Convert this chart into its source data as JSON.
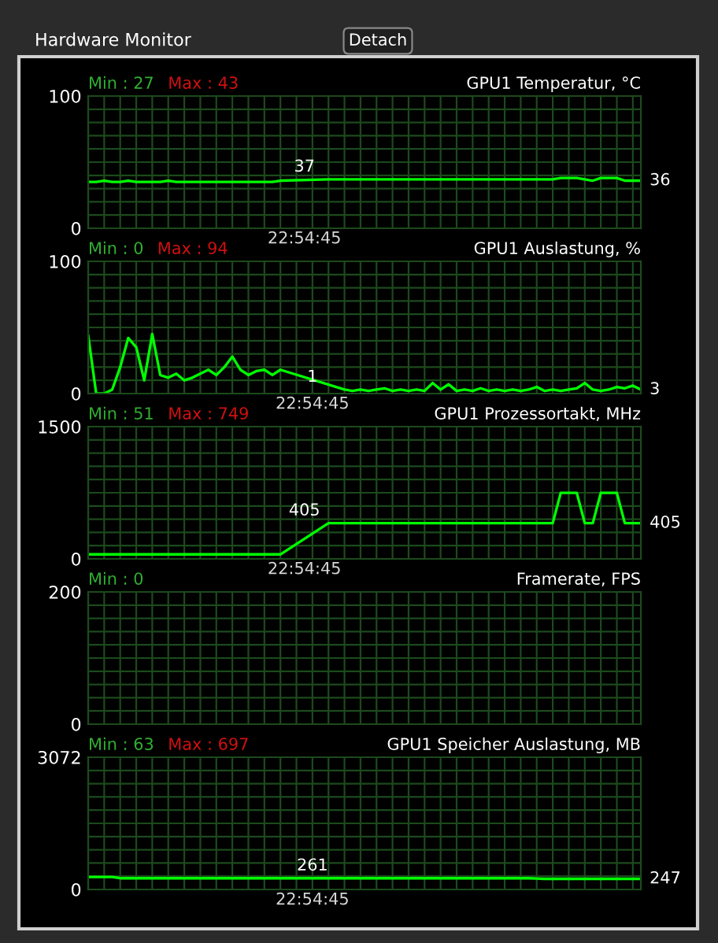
{
  "chart_data": [
    {
      "type": "line",
      "title": "GPU1 Temperatur, °C",
      "xlabel": "22:54:45",
      "categories": [
        null,
        null,
        null,
        null,
        null,
        null,
        null,
        null,
        null,
        null,
        null,
        null,
        null,
        null,
        null,
        null,
        null,
        null,
        null,
        null,
        null,
        null,
        null,
        null,
        null,
        null,
        null,
        null,
        null,
        null,
        null,
        null,
        null,
        null,
        null,
        null,
        null,
        null,
        null,
        null,
        null,
        null,
        null,
        null,
        null,
        null,
        null,
        null,
        null,
        null,
        null,
        null,
        null,
        null,
        null,
        null,
        null,
        null,
        null,
        null,
        null,
        null,
        null,
        null,
        null,
        null,
        null,
        null,
        null,
        null
      ],
      "series": [
        {
          "color": "#00ff00",
          "values": [
            35,
            35,
            36,
            35,
            35,
            36,
            35,
            35,
            35,
            35,
            36,
            35,
            35,
            35,
            35,
            35,
            35,
            35,
            35,
            35,
            35,
            35,
            35,
            35,
            36,
            null,
            null,
            null,
            null,
            null,
            37,
            37,
            37,
            37,
            37,
            37,
            37,
            37,
            37,
            37,
            37,
            37,
            37,
            37,
            37,
            37,
            37,
            37,
            37,
            37,
            37,
            37,
            37,
            37,
            37,
            37,
            37,
            37,
            37,
            38,
            38,
            38,
            37,
            36,
            38,
            38,
            38,
            36,
            36,
            36
          ]
        }
      ],
      "ylim": [
        0,
        100
      ],
      "yticks": [
        0,
        {
          "value": 10,
          "label": null
        },
        {
          "value": 20,
          "label": null
        },
        {
          "value": 30,
          "label": null
        },
        {
          "value": 40,
          "label": null
        },
        {
          "value": 50,
          "label": null
        },
        {
          "value": 60,
          "label": null
        },
        {
          "value": 70,
          "label": null
        },
        {
          "value": 80,
          "label": null
        },
        {
          "value": 90,
          "label": null
        },
        100
      ],
      "grid": true,
      "tick_labels": "y",
      "annotations": [
        "Min : 27",
        "Max : 43",
        "Hardware Monitor",
        "Detach",
        "37",
        "36"
      ]
    },
    {
      "type": "line",
      "title": "GPU1 Auslastung, %",
      "xlabel": "22:54:45",
      "categories": [
        null,
        null,
        null,
        null,
        null,
        null,
        null,
        null,
        null,
        null,
        null,
        null,
        null,
        null,
        null,
        null,
        null,
        null,
        null,
        null,
        null,
        null,
        null,
        null,
        null,
        null,
        null,
        null,
        null,
        null,
        null,
        null,
        null,
        null,
        null,
        null,
        null,
        null,
        null,
        null,
        null,
        null,
        null,
        null,
        null,
        null,
        null,
        null,
        null,
        null,
        null,
        null,
        null,
        null,
        null,
        null,
        null,
        null,
        null,
        null,
        null,
        null,
        null,
        null,
        null,
        null,
        null,
        null,
        null,
        null
      ],
      "series": [
        {
          "color": "#00ff00",
          "values": [
            44,
            0,
            0,
            3,
            20,
            42,
            35,
            10,
            45,
            14,
            12,
            15,
            10,
            12,
            15,
            18,
            14,
            20,
            28,
            18,
            14,
            17,
            18,
            14,
            18,
            null,
            null,
            null,
            null,
            null,
            null,
            null,
            3,
            2,
            3,
            2,
            3,
            4,
            2,
            3,
            2,
            3,
            2,
            8,
            3,
            7,
            2,
            3,
            2,
            4,
            2,
            3,
            2,
            3,
            2,
            3,
            5,
            2,
            3,
            2,
            3,
            4,
            8,
            3,
            2,
            3,
            5,
            4,
            6,
            3
          ]
        }
      ],
      "ylim": [
        0,
        100
      ],
      "yticks": [
        0,
        {
          "value": 10,
          "label": null
        },
        {
          "value": 20,
          "label": null
        },
        {
          "value": 30,
          "label": null
        },
        {
          "value": 40,
          "label": null
        },
        {
          "value": 50,
          "label": null
        },
        {
          "value": 60,
          "label": null
        },
        {
          "value": 70,
          "label": null
        },
        {
          "value": 80,
          "label": null
        },
        {
          "value": 90,
          "label": null
        },
        100
      ],
      "grid": true,
      "tick_labels": "y",
      "annotations": [
        "Min : 0",
        "Max : 94",
        "1",
        "3"
      ]
    },
    {
      "type": "line",
      "title": "GPU1 Prozessortakt, MHz",
      "xlabel": "22:54:45",
      "categories": [
        null,
        null,
        null,
        null,
        null,
        null,
        null,
        null,
        null,
        null,
        null,
        null,
        null,
        null,
        null,
        null,
        null,
        null,
        null,
        null,
        null,
        null,
        null,
        null,
        null,
        null,
        null,
        null,
        null,
        null,
        null,
        null,
        null,
        null,
        null,
        null,
        null,
        null,
        null,
        null,
        null,
        null,
        null,
        null,
        null,
        null,
        null,
        null,
        null,
        null,
        null,
        null,
        null,
        null,
        null,
        null,
        null,
        null,
        null,
        null,
        null,
        null,
        null,
        null,
        null,
        null,
        null,
        null,
        null,
        null
      ],
      "series": [
        {
          "color": "#00ff00",
          "values": [
            51,
            51,
            51,
            51,
            51,
            51,
            51,
            51,
            51,
            51,
            51,
            51,
            51,
            51,
            51,
            51,
            51,
            51,
            51,
            51,
            51,
            51,
            51,
            51,
            51,
            null,
            null,
            null,
            null,
            null,
            405,
            405,
            405,
            405,
            405,
            405,
            405,
            405,
            405,
            405,
            405,
            405,
            405,
            405,
            405,
            405,
            405,
            405,
            405,
            405,
            405,
            405,
            405,
            405,
            405,
            405,
            405,
            405,
            405,
            749,
            749,
            749,
            405,
            405,
            749,
            749,
            749,
            405,
            405,
            405
          ]
        }
      ],
      "ylim": [
        0,
        1500
      ],
      "yticks": [
        0,
        {
          "value": 150,
          "label": null
        },
        {
          "value": 300,
          "label": null
        },
        {
          "value": 450,
          "label": null
        },
        {
          "value": 600,
          "label": null
        },
        {
          "value": 750,
          "label": null
        },
        {
          "value": 900,
          "label": null
        },
        {
          "value": 1050,
          "label": null
        },
        {
          "value": 1200,
          "label": null
        },
        {
          "value": 1350,
          "label": null
        },
        1500
      ],
      "grid": true,
      "tick_labels": "y",
      "annotations": [
        "Min : 51",
        "Max : 749",
        "405",
        "405"
      ]
    },
    {
      "type": "line",
      "title": "Framerate, FPS",
      "categories": [
        null,
        null,
        null,
        null,
        null,
        null,
        null,
        null,
        null,
        null,
        null,
        null,
        null,
        null,
        null,
        null,
        null,
        null,
        null,
        null,
        null,
        null,
        null,
        null,
        null,
        null,
        null,
        null,
        null,
        null,
        null,
        null,
        null,
        null,
        null,
        null,
        null,
        null,
        null,
        null,
        null,
        null,
        null,
        null,
        null,
        null,
        null,
        null,
        null,
        null,
        null,
        null,
        null,
        null,
        null,
        null,
        null,
        null,
        null,
        null,
        null,
        null,
        null,
        null,
        null,
        null,
        null,
        null,
        null,
        null
      ],
      "ylim": [
        0,
        200
      ],
      "yticks": [
        0,
        {
          "value": 20,
          "label": null
        },
        {
          "value": 40,
          "label": null
        },
        {
          "value": 60,
          "label": null
        },
        {
          "value": 80,
          "label": null
        },
        {
          "value": 100,
          "label": null
        },
        {
          "value": 120,
          "label": null
        },
        {
          "value": 140,
          "label": null
        },
        {
          "value": 160,
          "label": null
        },
        {
          "value": 180,
          "label": null
        },
        200
      ],
      "grid": true,
      "tick_labels": "y",
      "annotations": [
        "Min : 0"
      ]
    },
    {
      "type": "line",
      "title": "GPU1 Speicher Auslastung, MB",
      "xlabel": "22:54:45",
      "categories": [
        null,
        null,
        null,
        null,
        null,
        null,
        null,
        null,
        null,
        null,
        null,
        null,
        null,
        null,
        null,
        null,
        null,
        null,
        null,
        null,
        null,
        null,
        null,
        null,
        null,
        null,
        null,
        null,
        null,
        null,
        null,
        null,
        null,
        null,
        null,
        null,
        null,
        null,
        null,
        null,
        null,
        null,
        null,
        null,
        null,
        null,
        null,
        null,
        null,
        null,
        null,
        null,
        null,
        null,
        null,
        null,
        null,
        null,
        null,
        null,
        null,
        null,
        null,
        null,
        null,
        null,
        null,
        null,
        null,
        null
      ],
      "series": [
        {
          "color": "#00ff00",
          "values": [
            290,
            290,
            290,
            290,
            261,
            261,
            261,
            261,
            261,
            261,
            261,
            261,
            261,
            261,
            261,
            261,
            261,
            261,
            261,
            261,
            261,
            261,
            261,
            261,
            261,
            null,
            null,
            null,
            null,
            null,
            null,
            null,
            261,
            261,
            261,
            261,
            261,
            261,
            261,
            261,
            261,
            261,
            261,
            261,
            261,
            261,
            261,
            261,
            261,
            261,
            261,
            261,
            261,
            261,
            261,
            261,
            255,
            247,
            247,
            247,
            247,
            247,
            247,
            247,
            247,
            247,
            247,
            247,
            247,
            247
          ]
        }
      ],
      "ylim": [
        0,
        3072
      ],
      "yticks": [
        0,
        {
          "value": 307.2,
          "label": null
        },
        {
          "value": 614.4,
          "label": null
        },
        {
          "value": 921.6,
          "label": null
        },
        {
          "value": 1228.8,
          "label": null
        },
        {
          "value": 1536,
          "label": null
        },
        {
          "value": 1843.2,
          "label": null
        },
        {
          "value": 2150.4,
          "label": null
        },
        {
          "value": 2457.6,
          "label": null
        },
        {
          "value": 2764.8,
          "label": null
        },
        3072
      ],
      "grid": true,
      "tick_labels": "y",
      "annotations": [
        "Min : 63",
        "Max : 697",
        "261",
        "247"
      ]
    }
  ]
}
